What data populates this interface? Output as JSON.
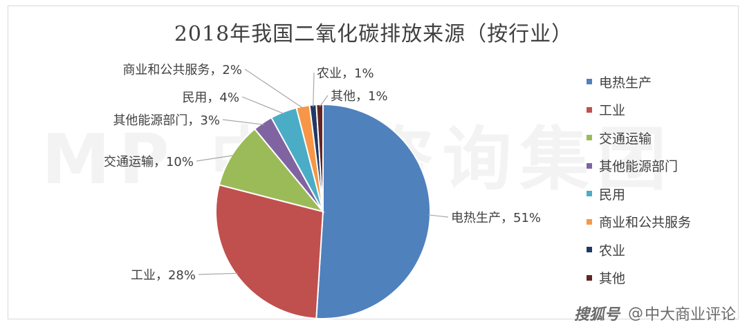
{
  "chart_data": {
    "type": "pie",
    "title": "2018年我国二氧化碳排放来源（按行业）",
    "slices": [
      {
        "label": "电热生产",
        "value": 51,
        "display": "电热生产，51%",
        "color": "#4f81bd"
      },
      {
        "label": "工业",
        "value": 28,
        "display": "工业，28%",
        "color": "#c0504d"
      },
      {
        "label": "交通运输",
        "value": 10,
        "display": "交通运输，10%",
        "color": "#9bbb59"
      },
      {
        "label": "其他能源部门",
        "value": 3,
        "display": "其他能源部门，3%",
        "color": "#8064a2"
      },
      {
        "label": "民用",
        "value": 4,
        "display": "民用，4%",
        "color": "#4bacc6"
      },
      {
        "label": "商业和公共服务",
        "value": 2,
        "display": "商业和公共服务，2%",
        "color": "#f79646"
      },
      {
        "label": "农业",
        "value": 1,
        "display": "农业，1%",
        "color": "#1f3864"
      },
      {
        "label": "其他",
        "value": 1,
        "display": "其他，1%",
        "color": "#632523"
      }
    ],
    "legend_position": "right"
  },
  "watermark": "MP 中大咨询集团",
  "footer": {
    "brand": "搜狐号",
    "at": "@",
    "account": "中大商业评论"
  }
}
